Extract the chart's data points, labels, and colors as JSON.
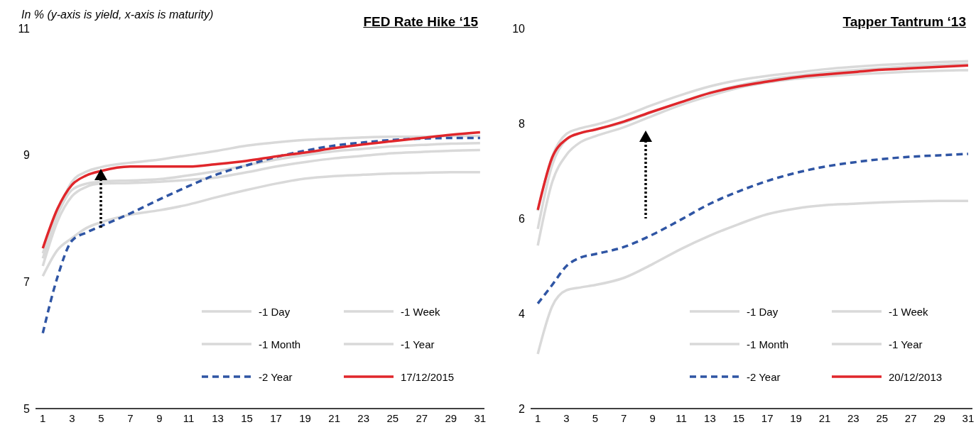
{
  "chart_data": [
    {
      "type": "line",
      "title": "FED Rate Hike ‘15",
      "annotations": [
        "In % (y-axis is yield, x-axis is maturity)"
      ],
      "x": [
        1,
        2,
        3,
        4,
        5,
        7,
        9,
        11,
        13,
        15,
        17,
        19,
        21,
        23,
        25,
        27,
        29,
        31
      ],
      "xlim": [
        0.5,
        31.3
      ],
      "xticks": [
        1,
        3,
        5,
        7,
        9,
        11,
        13,
        15,
        17,
        19,
        21,
        23,
        25,
        27,
        29,
        31
      ],
      "ylim": [
        5,
        11
      ],
      "yticks": [
        5,
        7,
        9,
        11
      ],
      "legend": "bottom right",
      "series": [
        {
          "name": "-1 Day",
          "color": "#d9d9d9",
          "values": [
            7.45,
            8.1,
            8.58,
            8.74,
            8.81,
            8.88,
            8.93,
            9.0,
            9.07,
            9.15,
            9.2,
            9.24,
            9.26,
            9.28,
            9.29,
            9.29,
            9.3,
            9.3
          ]
        },
        {
          "name": "-1 Week",
          "color": "#d9d9d9",
          "values": [
            7.37,
            8.05,
            8.45,
            8.55,
            8.58,
            8.6,
            8.62,
            8.68,
            8.75,
            8.84,
            8.93,
            9.0,
            9.06,
            9.1,
            9.14,
            9.16,
            9.18,
            9.19
          ]
        },
        {
          "name": "-1 Month",
          "color": "#d9d9d9",
          "values": [
            7.25,
            7.95,
            8.35,
            8.5,
            8.55,
            8.56,
            8.58,
            8.61,
            8.65,
            8.73,
            8.82,
            8.89,
            8.95,
            8.99,
            9.03,
            9.05,
            9.07,
            9.08
          ]
        },
        {
          "name": "-1 Year",
          "color": "#d9d9d9",
          "values": [
            7.09,
            7.5,
            7.69,
            7.85,
            7.94,
            8.06,
            8.13,
            8.22,
            8.34,
            8.45,
            8.55,
            8.63,
            8.67,
            8.69,
            8.71,
            8.72,
            8.73,
            8.73
          ]
        },
        {
          "name": "-2 Year",
          "color": "#2f55a4",
          "line_style": "dashed",
          "values": [
            6.19,
            7.07,
            7.65,
            7.78,
            7.88,
            8.08,
            8.3,
            8.51,
            8.7,
            8.84,
            8.97,
            9.07,
            9.15,
            9.2,
            9.24,
            9.26,
            9.27,
            9.27
          ]
        },
        {
          "name": "17/12/2015",
          "color": "#e0262b",
          "values": [
            7.53,
            8.15,
            8.53,
            8.68,
            8.75,
            8.82,
            8.82,
            8.82,
            8.86,
            8.91,
            8.98,
            9.04,
            9.11,
            9.17,
            9.22,
            9.27,
            9.32,
            9.36
          ]
        }
      ]
    },
    {
      "type": "line",
      "title": "Tapper Tantrum ‘13",
      "x": [
        1,
        2,
        3,
        4,
        5,
        7,
        9,
        11,
        13,
        15,
        17,
        19,
        21,
        23,
        25,
        27,
        29,
        31
      ],
      "xlim": [
        0.5,
        31.3
      ],
      "xticks": [
        1,
        3,
        5,
        7,
        9,
        11,
        13,
        15,
        17,
        19,
        21,
        23,
        25,
        27,
        29,
        31
      ],
      "ylim": [
        2,
        10
      ],
      "yticks": [
        2,
        4,
        6,
        8,
        10
      ],
      "legend": "bottom right",
      "series": [
        {
          "name": "-1 Day",
          "color": "#d9d9d9",
          "values": [
            5.78,
            7.12,
            7.66,
            7.8,
            7.87,
            8.02,
            8.24,
            8.45,
            8.65,
            8.8,
            8.92,
            9.0,
            9.07,
            9.12,
            9.16,
            9.2,
            9.23,
            9.25
          ]
        },
        {
          "name": "-1 Week",
          "color": "#d9d9d9",
          "values": [
            6.16,
            7.3,
            7.78,
            7.9,
            7.97,
            8.16,
            8.39,
            8.6,
            8.78,
            8.91,
            9.0,
            9.07,
            9.14,
            9.19,
            9.23,
            9.26,
            9.29,
            9.31
          ]
        },
        {
          "name": "-1 Month",
          "color": "#d9d9d9",
          "values": [
            5.43,
            6.76,
            7.34,
            7.61,
            7.73,
            7.92,
            8.16,
            8.39,
            8.58,
            8.75,
            8.86,
            8.94,
            8.99,
            9.03,
            9.06,
            9.09,
            9.11,
            9.12
          ]
        },
        {
          "name": "-1 Year",
          "color": "#d9d9d9",
          "values": [
            3.15,
            4.15,
            4.49,
            4.55,
            4.6,
            4.75,
            5.04,
            5.36,
            5.64,
            5.88,
            6.09,
            6.21,
            6.28,
            6.31,
            6.34,
            6.36,
            6.37,
            6.37
          ]
        },
        {
          "name": "-2 Year",
          "color": "#2f55a4",
          "line_style": "dashed",
          "values": [
            4.21,
            4.6,
            5.0,
            5.18,
            5.25,
            5.4,
            5.66,
            5.98,
            6.31,
            6.57,
            6.79,
            6.96,
            7.09,
            7.18,
            7.25,
            7.3,
            7.33,
            7.36
          ]
        },
        {
          "name": "20/12/2013",
          "color": "#e0262b",
          "values": [
            6.18,
            7.28,
            7.67,
            7.8,
            7.87,
            8.04,
            8.25,
            8.45,
            8.64,
            8.78,
            8.88,
            8.97,
            9.03,
            9.08,
            9.13,
            9.16,
            9.19,
            9.22
          ]
        }
      ]
    }
  ]
}
